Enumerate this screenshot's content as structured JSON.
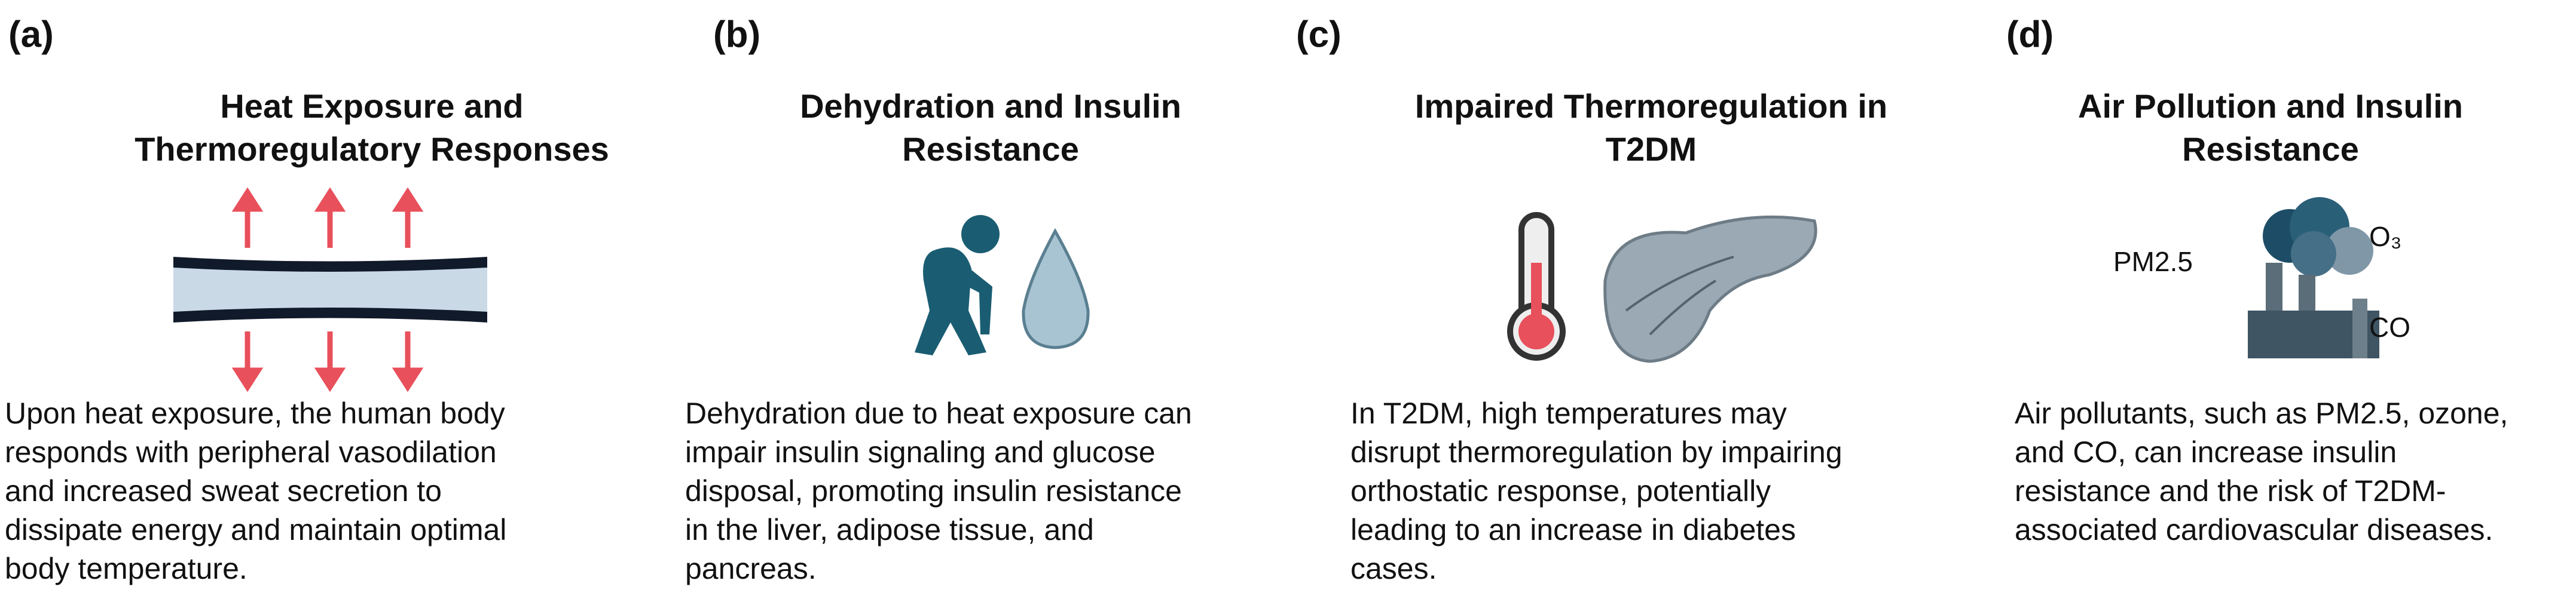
{
  "panels": [
    {
      "label": "(a)",
      "title": [
        "Heat Exposure and",
        "Thermoregulatory Responses"
      ],
      "body": [
        "Upon heat exposure, the human body",
        "responds with peripheral vasodilation",
        "and increased sweat secretion to",
        "dissipate energy and maintain optimal",
        "body temperature."
      ]
    },
    {
      "label": "(b)",
      "title": [
        "Dehydration and Insulin",
        "Resistance"
      ],
      "body": [
        "Dehydration due to heat exposure can",
        "impair insulin signaling and glucose",
        "disposal, promoting insulin resistance",
        "in the liver, adipose tissue, and",
        "pancreas."
      ]
    },
    {
      "label": "(c)",
      "title": [
        "Impaired Thermoregulation in",
        "T2DM"
      ],
      "body": [
        "In T2DM, high temperatures may",
        "disrupt thermoregulation by impairing",
        "orthostatic response, potentially",
        "leading to an increase in diabetes",
        "cases."
      ]
    },
    {
      "label": "(d)",
      "title": [
        "Air Pollution and Insulin",
        "Resistance"
      ],
      "body": [
        "Air pollutants, such as PM2.5, ozone,",
        "and CO, can increase insulin",
        "resistance and the risk of T2DM-",
        "associated cardiovascular diseases."
      ],
      "icon_labels": [
        "PM2.5",
        "O₃",
        "CO"
      ]
    }
  ]
}
